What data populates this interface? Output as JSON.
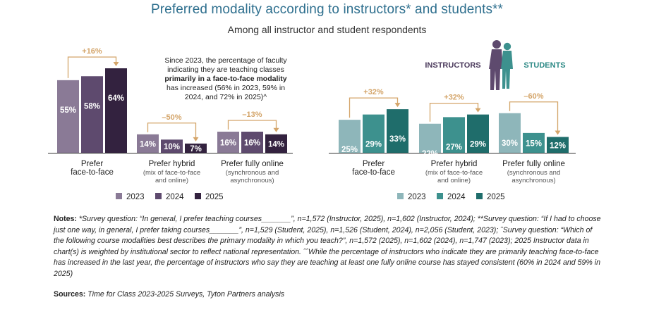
{
  "title": "Preferred modality according to instructors* and students**",
  "subtitle": "Among all instructor and student respondents",
  "chart_data": [
    {
      "type": "bar",
      "group": "instructors",
      "legend_title": "INSTRUCTORS",
      "categories": [
        {
          "name": "Prefer",
          "sub": "face-to-face"
        },
        {
          "name": "Prefer hybrid",
          "sub": "(mix of face-to-face",
          "sub2": "and online)"
        },
        {
          "name": "Prefer fully online",
          "sub": "(synchronous and",
          "sub2": "asynchronous)"
        }
      ],
      "series": [
        {
          "name": "2023",
          "color": "#8a7a96",
          "values": [
            55,
            14,
            16
          ]
        },
        {
          "name": "2024",
          "color": "#5e4a6e",
          "values": [
            58,
            10,
            16
          ]
        },
        {
          "name": "2025",
          "color": "#33223f",
          "values": [
            64,
            7,
            14
          ]
        }
      ],
      "changes": [
        "+16%",
        "–50%",
        "–13%"
      ],
      "ylim": [
        0,
        64
      ]
    },
    {
      "type": "bar",
      "group": "students",
      "legend_title": "STUDENTS",
      "categories": [
        {
          "name": "Prefer",
          "sub": "face-to-face"
        },
        {
          "name": "Prefer hybrid",
          "sub": "(mix of face-to-face",
          "sub2": "and online)"
        },
        {
          "name": "Prefer fully online",
          "sub": "(synchronous and",
          "sub2": "asynchronous)"
        }
      ],
      "series": [
        {
          "name": "2023",
          "color": "#8eb6ba",
          "values": [
            25,
            22,
            30
          ]
        },
        {
          "name": "2024",
          "color": "#3d918e",
          "values": [
            29,
            27,
            15
          ]
        },
        {
          "name": "2025",
          "color": "#1f6d6b",
          "values": [
            33,
            29,
            12
          ]
        }
      ],
      "changes": [
        "+32%",
        "+32%",
        "–60%"
      ],
      "ylim": [
        0,
        64
      ]
    }
  ],
  "annotation": {
    "line1": "Since 2023, the percentage of faculty",
    "line2": "indicating they are teaching classes",
    "line3": "primarily in a face-to-face modality",
    "line4": "has increased (56% in 2023, 59% in",
    "line5": "2024, and 72% in 2025)^"
  },
  "colors": {
    "title": "#2e6f8e",
    "instructors_label": "#4b3a5c",
    "students_label": "#2e8a86",
    "connector": "#d4a56a"
  },
  "notes_label": "Notes:",
  "notes_text": "*Survey question: “In general, I prefer teaching courses_______”, n=1,572 (Instructor, 2025), n=1,602 (Instructor, 2024); **Survey question: “If I had to choose just one way, in general, I prefer taking courses_______”, n=1,529 (Student, 2025), n=1,526 (Student, 2024), n=2,056 (Student, 2023); ˆSurvey question: “Which of the following course modalities best describes the primary modality in which you teach?”, n=1,572 (2025), n=1,602 (2024), n=1,747 (2023); 2025 Instructor data in chart(s) is weighted by institutional sector to reflect national representation. ˆˆWhile the percentage of instructors who indicate they are primarily teaching face-to-face has increased in the last year, the percentage of instructors who say they are teaching at least one fully online course has stayed consistent (60% in 2024 and 59% in 2025)",
  "sources_label": "Sources:",
  "sources_text": "Time for Class 2023-2025 Surveys, Tyton Partners analysis"
}
